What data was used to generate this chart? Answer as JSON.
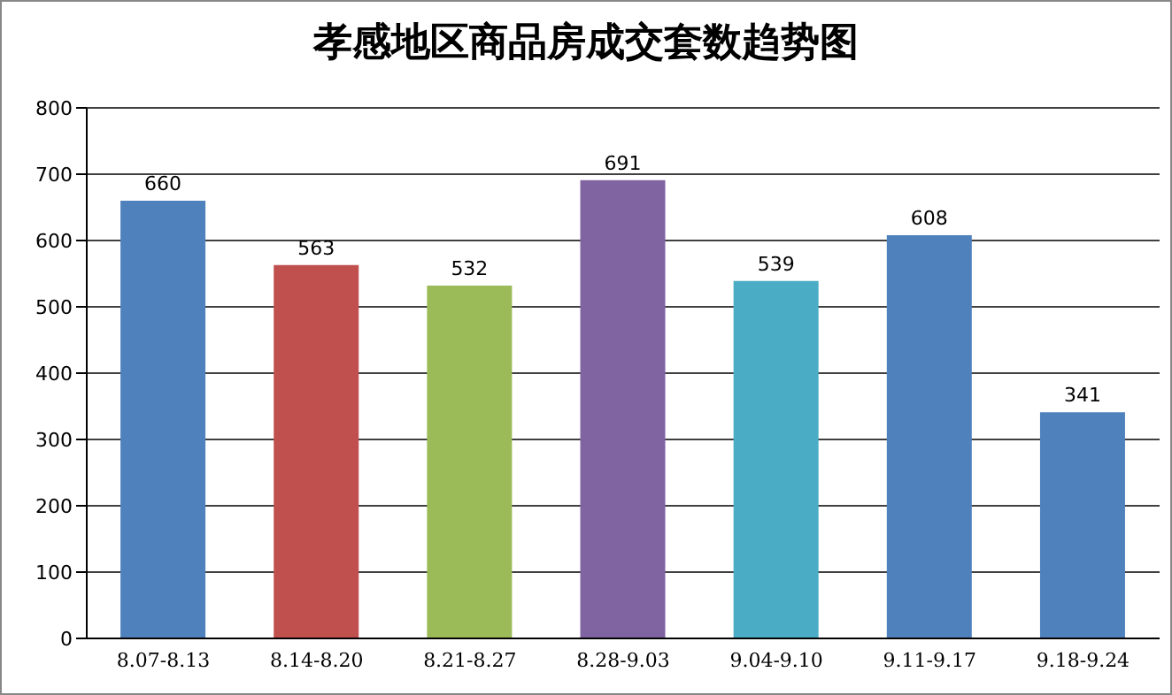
{
  "chart_data": {
    "type": "bar",
    "title": "孝感地区商品房成交套数趋势图",
    "categories": [
      "8.07-8.13",
      "8.14-8.20",
      "8.21-8.27",
      "8.28-9.03",
      "9.04-9.10",
      "9.11-9.17",
      "9.18-9.24"
    ],
    "values": [
      660,
      563,
      532,
      691,
      539,
      608,
      341
    ],
    "colors": [
      "#4f81bd",
      "#c0504d",
      "#9bbb59",
      "#8064a2",
      "#4bacc6",
      "#4f81bd",
      "#4f81bd"
    ],
    "ylim": [
      0,
      800
    ],
    "yticks": [
      0,
      100,
      200,
      300,
      400,
      500,
      600,
      700,
      800
    ],
    "grid": "y",
    "data_labels": true,
    "legend": false
  }
}
